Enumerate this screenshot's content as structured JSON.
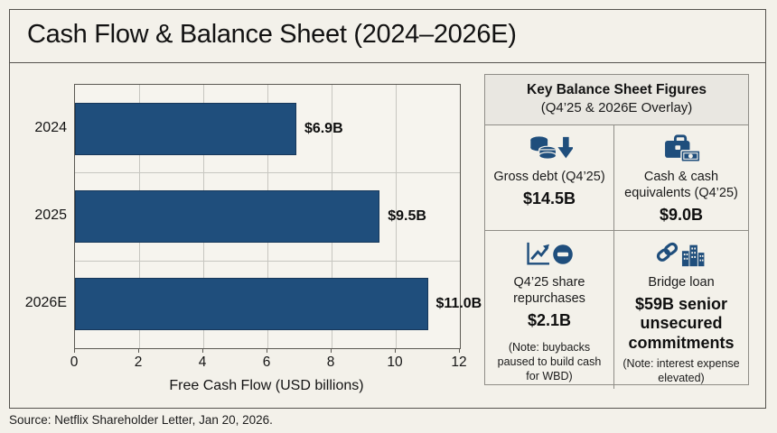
{
  "header": {
    "title": "Cash Flow & Balance Sheet (2024–2026E)"
  },
  "chart_data": {
    "type": "bar",
    "orientation": "horizontal",
    "title": "",
    "categories": [
      "2024",
      "2025",
      "2026E"
    ],
    "values": [
      6.9,
      9.5,
      11.0
    ],
    "value_labels": [
      "$6.9B",
      "$9.5B",
      "$11.0B"
    ],
    "xlabel": "Free Cash Flow (USD billions)",
    "ylabel": "",
    "xlim": [
      0,
      12
    ],
    "xticks": [
      0,
      2,
      4,
      6,
      8,
      10,
      12
    ],
    "grid": true,
    "legend": "none",
    "bar_color": "#1f4e7c"
  },
  "panel": {
    "title": "Key Balance Sheet Figures",
    "subtitle": "(Q4’25 & 2026E Overlay)",
    "accent_color": "#1f4e7c",
    "cells": [
      {
        "icon": "coins-down-icon",
        "label": "Gross debt (Q4’25)",
        "value": "$14.5B",
        "note": ""
      },
      {
        "icon": "briefcase-cash-icon",
        "label": "Cash & cash equivalents (Q4’25)",
        "value": "$9.0B",
        "note": ""
      },
      {
        "icon": "chart-minus-icon",
        "label": "Q4’25 share repurchases",
        "value": "$2.1B",
        "note": "(Note: buybacks paused to build cash for WBD)"
      },
      {
        "icon": "link-buildings-icon",
        "label": "Bridge loan",
        "value": "$59B senior unsecured commitments",
        "note": "(Note: interest expense elevated)"
      }
    ]
  },
  "footer": {
    "source": "Source: Netflix Shareholder Letter, Jan 20, 2026."
  }
}
